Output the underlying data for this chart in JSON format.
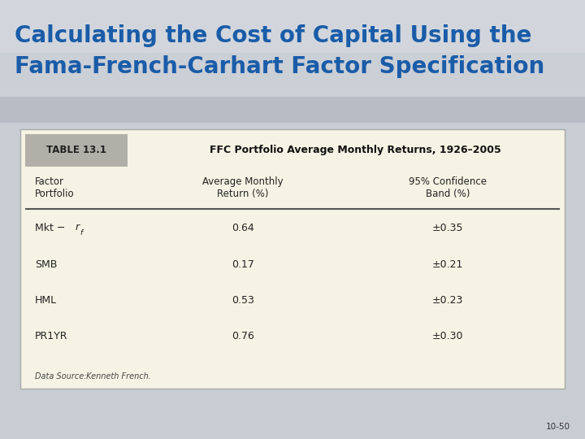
{
  "title_line1": "Calculating the Cost of Capital Using the",
  "title_line2": "Fama-French-Carhart Factor Specification",
  "title_color": "#1A5CA8",
  "title_fontsize": 20,
  "table_label": "TABLE 13.1",
  "table_title": "FFC Portfolio Average Monthly Returns, 1926–2005",
  "col_headers_left": "Factor\nPortfolio",
  "col_headers_mid": "Average Monthly\nReturn (%)",
  "col_headers_right": "95% Confidence\nBand (%)",
  "rows": [
    [
      "Mkt − r_f",
      "0.64",
      "±0.35"
    ],
    [
      "SMB",
      "0.17",
      "±0.21"
    ],
    [
      "HML",
      "0.53",
      "±0.23"
    ],
    [
      "PR1YR",
      "0.76",
      "±0.30"
    ]
  ],
  "data_source_italic": "Data Source:",
  "data_source_normal": " Kenneth French.",
  "page_number": "10-50",
  "slide_bg_top": "#C8CDD4",
  "slide_bg_bottom": "#C8CDD4",
  "table_bg": "#F5F4E4",
  "table_label_bg": "#B0B0A8",
  "table_border_color": "#AAAAAA",
  "header_line_color": "#555555",
  "text_color": "#222222",
  "table_title_color": "#111111"
}
